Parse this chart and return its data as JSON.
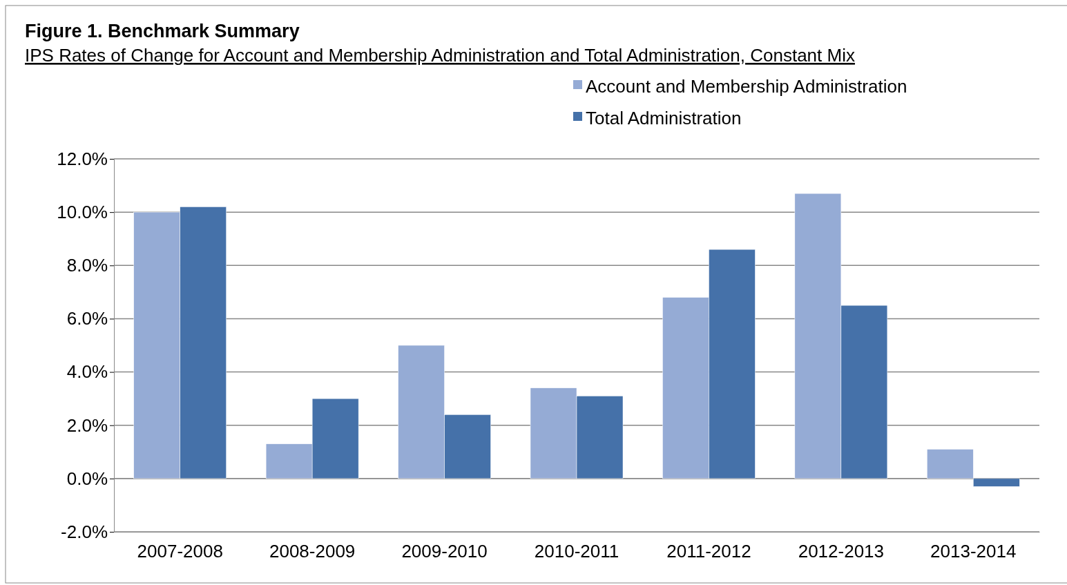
{
  "chart_data": {
    "type": "bar",
    "title": "Figure 1. Benchmark Summary",
    "subtitle": "IPS Rates of Change for Account and Membership Administration and Total Administration, Constant Mix",
    "categories": [
      "2007-2008",
      "2008-2009",
      "2009-2010",
      "2010-2011",
      "2011-2012",
      "2012-2013",
      "2013-2014"
    ],
    "series": [
      {
        "name": "Account and Membership Administration",
        "color": "#95abd5",
        "values": [
          10.0,
          1.3,
          5.0,
          3.4,
          6.8,
          10.7,
          1.1
        ]
      },
      {
        "name": "Total Administration",
        "color": "#4571a9",
        "values": [
          10.2,
          3.0,
          2.4,
          3.1,
          8.6,
          6.5,
          -0.3
        ]
      }
    ],
    "ylim": [
      -2,
      12
    ],
    "yticks": [
      {
        "value": -2,
        "label": "-2.0%"
      },
      {
        "value": 0,
        "label": "0.0%"
      },
      {
        "value": 2,
        "label": "2.0%"
      },
      {
        "value": 4,
        "label": "4.0%"
      },
      {
        "value": 6,
        "label": "6.0%"
      },
      {
        "value": 8,
        "label": "8.0%"
      },
      {
        "value": 10,
        "label": "10.0%"
      },
      {
        "value": 12,
        "label": "12.0%"
      }
    ],
    "grid": "y",
    "legend": "top right"
  }
}
